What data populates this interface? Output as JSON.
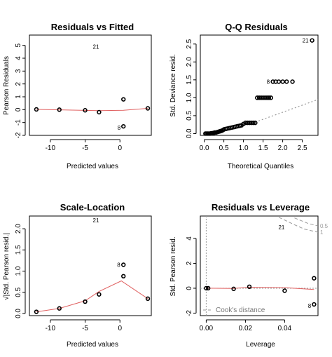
{
  "chart_data": [
    {
      "type": "scatter",
      "title": "Residuals vs Fitted",
      "xlabel": "Predicted values",
      "ylabel": "Pearson Residuals",
      "xlim": [
        -13,
        4.5
      ],
      "ylim": [
        -2,
        5.8
      ],
      "xticks": [
        -10,
        -5,
        0
      ],
      "yticks": [
        -2,
        -1,
        0,
        1,
        2,
        3,
        4,
        5
      ],
      "points": [
        {
          "x": -12,
          "y": 0.02
        },
        {
          "x": -8.7,
          "y": 0.0
        },
        {
          "x": -5,
          "y": -0.05
        },
        {
          "x": -3,
          "y": -0.2
        },
        {
          "x": 0.5,
          "y": 0.8
        },
        {
          "x": 0.5,
          "y": -1.3
        },
        {
          "x": 4,
          "y": 0.1
        }
      ],
      "smooth": [
        {
          "x": -12,
          "y": 0.02
        },
        {
          "x": -8,
          "y": -0.02
        },
        {
          "x": -3,
          "y": -0.08
        },
        {
          "x": 0.5,
          "y": -0.05
        },
        {
          "x": 4,
          "y": 0.1
        }
      ],
      "labels": [
        {
          "text": "21",
          "x": -3,
          "y": 4.9
        },
        {
          "text": "8",
          "x": 0.1,
          "y": -1.4
        }
      ]
    },
    {
      "type": "scatter",
      "title": "Q-Q Residuals",
      "xlabel": "Theoretical Quantiles",
      "ylabel": "Std. Deviance resid.",
      "xlim": [
        -0.1,
        2.9
      ],
      "ylim": [
        -0.05,
        2.75
      ],
      "xticks": [
        0.0,
        0.5,
        1.0,
        1.5,
        2.0,
        2.5
      ],
      "yticks": [
        0.0,
        0.5,
        1.0,
        1.5,
        2.0,
        2.5
      ],
      "points": [
        {
          "x": 0.03,
          "y": 0.0
        },
        {
          "x": 0.06,
          "y": 0.0
        },
        {
          "x": 0.09,
          "y": 0.0
        },
        {
          "x": 0.12,
          "y": 0.0
        },
        {
          "x": 0.15,
          "y": 0.0
        },
        {
          "x": 0.18,
          "y": 0.01
        },
        {
          "x": 0.21,
          "y": 0.01
        },
        {
          "x": 0.24,
          "y": 0.02
        },
        {
          "x": 0.27,
          "y": 0.03
        },
        {
          "x": 0.3,
          "y": 0.03
        },
        {
          "x": 0.33,
          "y": 0.04
        },
        {
          "x": 0.36,
          "y": 0.05
        },
        {
          "x": 0.39,
          "y": 0.06
        },
        {
          "x": 0.42,
          "y": 0.07
        },
        {
          "x": 0.45,
          "y": 0.08
        },
        {
          "x": 0.48,
          "y": 0.1
        },
        {
          "x": 0.51,
          "y": 0.12
        },
        {
          "x": 0.55,
          "y": 0.13
        },
        {
          "x": 0.59,
          "y": 0.14
        },
        {
          "x": 0.63,
          "y": 0.15
        },
        {
          "x": 0.67,
          "y": 0.16
        },
        {
          "x": 0.71,
          "y": 0.17
        },
        {
          "x": 0.75,
          "y": 0.18
        },
        {
          "x": 0.79,
          "y": 0.19
        },
        {
          "x": 0.83,
          "y": 0.2
        },
        {
          "x": 0.87,
          "y": 0.21
        },
        {
          "x": 0.91,
          "y": 0.22
        },
        {
          "x": 0.95,
          "y": 0.23
        },
        {
          "x": 1.0,
          "y": 0.27
        },
        {
          "x": 1.05,
          "y": 0.3
        },
        {
          "x": 1.1,
          "y": 0.3
        },
        {
          "x": 1.15,
          "y": 0.3
        },
        {
          "x": 1.2,
          "y": 0.3
        },
        {
          "x": 1.25,
          "y": 0.3
        },
        {
          "x": 1.3,
          "y": 0.3
        },
        {
          "x": 1.35,
          "y": 1.0
        },
        {
          "x": 1.4,
          "y": 1.0
        },
        {
          "x": 1.45,
          "y": 1.0
        },
        {
          "x": 1.5,
          "y": 1.0
        },
        {
          "x": 1.55,
          "y": 1.0
        },
        {
          "x": 1.6,
          "y": 1.0
        },
        {
          "x": 1.65,
          "y": 1.0
        },
        {
          "x": 1.7,
          "y": 1.0
        },
        {
          "x": 1.75,
          "y": 1.45
        },
        {
          "x": 1.82,
          "y": 1.45
        },
        {
          "x": 1.9,
          "y": 1.45
        },
        {
          "x": 2.0,
          "y": 1.45
        },
        {
          "x": 2.1,
          "y": 1.45
        },
        {
          "x": 2.25,
          "y": 1.45
        },
        {
          "x": 2.75,
          "y": 2.6
        }
      ],
      "refline": [
        {
          "x": 1.3,
          "y": 0.32
        },
        {
          "x": 2.9,
          "y": 0.95
        }
      ],
      "labels": [
        {
          "text": "8",
          "x": 1.67,
          "y": 1.45
        },
        {
          "text": "21",
          "x": 2.66,
          "y": 2.6
        }
      ]
    },
    {
      "type": "scatter",
      "title": "Scale-Location",
      "xlabel": "Predicted values",
      "ylabel": "√|Std. Pearson resid.|",
      "xlim": [
        -13,
        4.5
      ],
      "ylim": [
        -0.05,
        2.3
      ],
      "xticks": [
        -10,
        -5,
        0
      ],
      "yticks": [
        0.0,
        0.5,
        1.0,
        1.5,
        2.0
      ],
      "points": [
        {
          "x": -12,
          "y": 0.04
        },
        {
          "x": -8.7,
          "y": 0.12
        },
        {
          "x": -5,
          "y": 0.28
        },
        {
          "x": -3,
          "y": 0.45
        },
        {
          "x": 0.5,
          "y": 0.88
        },
        {
          "x": 0.5,
          "y": 1.15
        },
        {
          "x": 4,
          "y": 0.35
        }
      ],
      "smooth": [
        {
          "x": -12,
          "y": 0.04
        },
        {
          "x": -8.7,
          "y": 0.12
        },
        {
          "x": -5,
          "y": 0.3
        },
        {
          "x": -3,
          "y": 0.52
        },
        {
          "x": 0.2,
          "y": 0.77
        },
        {
          "x": 4,
          "y": 0.35
        }
      ],
      "labels": [
        {
          "text": "21",
          "x": -3,
          "y": 2.2
        },
        {
          "text": "8",
          "x": 0.05,
          "y": 1.15
        }
      ]
    },
    {
      "type": "scatter",
      "title": "Residuals vs Leverage",
      "xlabel": "Leverage",
      "ylabel": "Std. Pearson resid.",
      "xlim": [
        -0.003,
        0.057
      ],
      "ylim": [
        -2.2,
        5.8
      ],
      "xticks": [
        0.0,
        0.02,
        0.04
      ],
      "yticks": [
        -2,
        0,
        2,
        4
      ],
      "points": [
        {
          "x": 0.0,
          "y": 0.0
        },
        {
          "x": 0.001,
          "y": 0.0
        },
        {
          "x": 0.014,
          "y": -0.05
        },
        {
          "x": 0.022,
          "y": 0.12
        },
        {
          "x": 0.04,
          "y": -0.2
        },
        {
          "x": 0.055,
          "y": 0.8
        },
        {
          "x": 0.055,
          "y": -1.3
        }
      ],
      "smooth": [
        {
          "x": 0.0,
          "y": 0.0
        },
        {
          "x": 0.014,
          "y": -0.02
        },
        {
          "x": 0.022,
          "y": 0.08
        },
        {
          "x": 0.04,
          "y": 0.05
        },
        {
          "x": 0.055,
          "y": -0.1
        }
      ],
      "cooks": [
        {
          "level": "1",
          "pts": [
            {
              "x": 0.037,
              "y": 5.7
            },
            {
              "x": 0.045,
              "y": 5.1
            },
            {
              "x": 0.05,
              "y": 4.75
            },
            {
              "x": 0.057,
              "y": 4.5
            }
          ]
        },
        {
          "level": "0.5",
          "pts": [
            {
              "x": 0.045,
              "y": 5.65
            },
            {
              "x": 0.052,
              "y": 5.2
            },
            {
              "x": 0.057,
              "y": 5.0
            }
          ]
        }
      ],
      "labels": [
        {
          "text": "21",
          "x": 0.04,
          "y": 4.9
        },
        {
          "text": "8",
          "x": 0.0535,
          "y": -1.4
        }
      ],
      "legend": "Cook's distance"
    }
  ]
}
